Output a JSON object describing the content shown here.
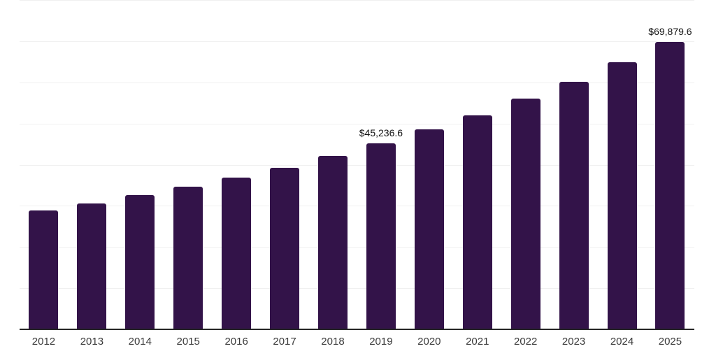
{
  "chart_data": {
    "type": "bar",
    "title": "",
    "xlabel": "",
    "ylabel": "",
    "categories": [
      "2012",
      "2013",
      "2014",
      "2015",
      "2016",
      "2017",
      "2018",
      "2019",
      "2020",
      "2021",
      "2022",
      "2023",
      "2024",
      "2025"
    ],
    "values": [
      28900,
      30600,
      32650,
      34700,
      36900,
      39300,
      42150,
      45236.6,
      48600,
      52000,
      56100,
      60200,
      64950,
      69879.6
    ],
    "value_labels": [
      {
        "category": "2019",
        "index": 7,
        "text": "$45,236.6"
      },
      {
        "category": "2025",
        "index": 13,
        "text": "$69,879.6"
      }
    ],
    "ylim": [
      0,
      80000
    ],
    "gridline_interval": 10000,
    "grid": "horizontal",
    "legend": "none",
    "colors": {
      "bar": "#331349",
      "gridline": "#f0f0f0",
      "axis_line": "#262626",
      "value_label_text": "#111111",
      "axis_label_text": "#3a3a3a",
      "background": "#ffffff"
    }
  }
}
